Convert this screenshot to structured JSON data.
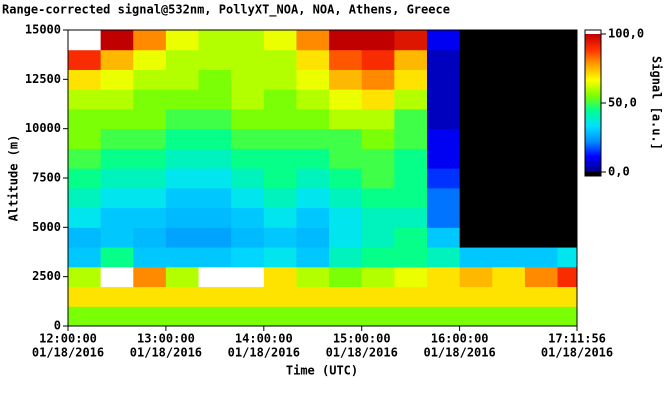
{
  "chart_data": {
    "type": "heatmap",
    "title": "Range-corrected signal@532nm, PollyXT_NOA, NOA, Athens, Greece",
    "x_label": "Time (UTC)",
    "y_label": "Altitude (m)",
    "colorbar_label": "Signal [a.u.]",
    "x_edges": [
      "2016-01-18T12:00:00",
      "2016-01-18T12:20:00",
      "2016-01-18T12:40:00",
      "2016-01-18T13:00:00",
      "2016-01-18T13:20:00",
      "2016-01-18T13:40:00",
      "2016-01-18T14:00:00",
      "2016-01-18T14:20:00",
      "2016-01-18T14:40:00",
      "2016-01-18T15:00:00",
      "2016-01-18T15:20:00",
      "2016-01-18T15:40:00",
      "2016-01-18T16:00:00",
      "2016-01-18T16:20:00",
      "2016-01-18T16:40:00",
      "2016-01-18T17:00:00",
      "2016-01-18T17:11:56"
    ],
    "y_edges": [
      0,
      1000,
      2000,
      3000,
      4000,
      5000,
      6000,
      7000,
      8000,
      9000,
      10000,
      11000,
      12000,
      13000,
      14000,
      15000
    ],
    "values": [
      [
        55,
        55,
        55,
        55,
        55,
        55,
        55,
        55,
        55,
        55,
        55,
        55,
        55,
        55,
        55,
        55
      ],
      [
        70,
        70,
        70,
        70,
        70,
        70,
        70,
        70,
        70,
        70,
        70,
        70,
        70,
        70,
        70,
        70
      ],
      [
        60,
        110,
        80,
        60,
        110,
        110,
        70,
        60,
        55,
        60,
        65,
        70,
        75,
        70,
        80,
        90
      ],
      [
        30,
        45,
        30,
        30,
        30,
        32,
        35,
        30,
        40,
        45,
        45,
        40,
        30,
        30,
        30,
        35
      ],
      [
        28,
        30,
        28,
        25,
        25,
        28,
        30,
        28,
        35,
        40,
        45,
        30,
        -5,
        -5,
        -5,
        -5
      ],
      [
        35,
        30,
        30,
        28,
        28,
        30,
        35,
        30,
        35,
        40,
        40,
        20,
        -5,
        -5,
        -5,
        -5
      ],
      [
        40,
        35,
        35,
        30,
        30,
        35,
        40,
        35,
        40,
        45,
        45,
        20,
        -5,
        -5,
        -5,
        -5
      ],
      [
        45,
        40,
        40,
        35,
        35,
        40,
        45,
        40,
        45,
        50,
        45,
        15,
        -5,
        -5,
        -5,
        -5
      ],
      [
        50,
        45,
        45,
        40,
        40,
        45,
        45,
        45,
        50,
        50,
        45,
        10,
        -5,
        -5,
        -5,
        -5
      ],
      [
        55,
        50,
        50,
        45,
        45,
        50,
        50,
        50,
        50,
        55,
        50,
        10,
        -5,
        -5,
        -5,
        -5
      ],
      [
        55,
        55,
        55,
        50,
        50,
        55,
        55,
        55,
        60,
        60,
        50,
        5,
        -5,
        -5,
        -5,
        -5
      ],
      [
        60,
        60,
        55,
        55,
        55,
        60,
        55,
        60,
        65,
        70,
        60,
        5,
        -5,
        -5,
        -5,
        -5
      ],
      [
        70,
        65,
        60,
        60,
        55,
        60,
        60,
        65,
        75,
        80,
        70,
        5,
        -5,
        -5,
        -5,
        -5
      ],
      [
        90,
        75,
        65,
        60,
        60,
        60,
        60,
        70,
        85,
        90,
        75,
        5,
        -5,
        -5,
        -5,
        -5
      ],
      [
        110,
        100,
        80,
        65,
        60,
        60,
        65,
        80,
        100,
        100,
        95,
        10,
        -5,
        -5,
        -5,
        -5
      ]
    ],
    "xlim": [
      "2016-01-18T12:00:00",
      "2016-01-18T17:11:56"
    ],
    "xticks": [
      {
        "value": "2016-01-18T12:00:00",
        "label": [
          "12:00:00",
          "01/18/2016"
        ]
      },
      {
        "value": "2016-01-18T13:00:00",
        "label": [
          "13:00:00",
          "01/18/2016"
        ]
      },
      {
        "value": "2016-01-18T14:00:00",
        "label": [
          "14:00:00",
          "01/18/2016"
        ]
      },
      {
        "value": "2016-01-18T15:00:00",
        "label": [
          "15:00:00",
          "01/18/2016"
        ]
      },
      {
        "value": "2016-01-18T16:00:00",
        "label": [
          "16:00:00",
          "01/18/2016"
        ]
      },
      {
        "value": "2016-01-18T17:11:56",
        "label": [
          "17:11:56",
          "01/18/2016"
        ]
      }
    ],
    "ylim": [
      0,
      15000
    ],
    "yticks": [
      0,
      2500,
      5000,
      7500,
      10000,
      12500,
      15000
    ],
    "clim": [
      0,
      100
    ],
    "cticks": [
      {
        "value": 0,
        "label": "0,0"
      },
      {
        "value": 50,
        "label": "50,0"
      },
      {
        "value": 100,
        "label": "100,0"
      }
    ],
    "colormap": [
      "#00008b",
      "#0000ff",
      "#0090ff",
      "#00e0ff",
      "#00ff90",
      "#80ff00",
      "#ffff00",
      "#ffa000",
      "#ff3000",
      "#c00000"
    ],
    "under_color": "#000000",
    "over_color": "#ffffff"
  }
}
